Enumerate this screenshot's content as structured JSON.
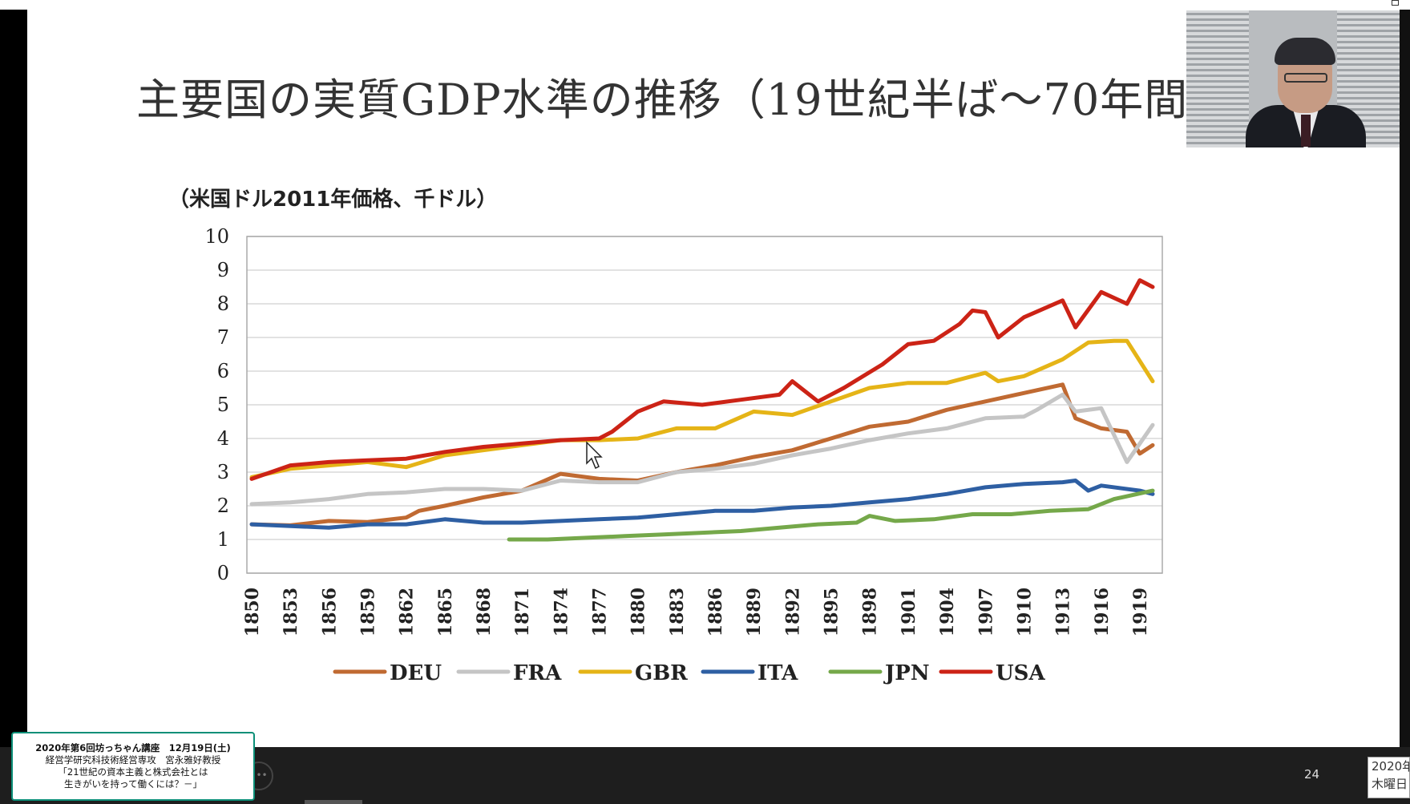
{
  "slide": {
    "title": "主要国の実質GDP水準の推移（19世紀半ば～70年間）",
    "unit_label": "（米国ドル2011年価格、千ドル）",
    "page_number": "24"
  },
  "caption": {
    "line1": "2020年第6回坊っちゃん講座　12月19日(土)",
    "line2": "経営学研究科技術経営専攻　宮永雅好教授",
    "line3": "「21世紀の資本主義と株式会社とは",
    "line4": "生きがいを持って働くには？－」"
  },
  "datebox": {
    "line1": "2020年",
    "line2": "木曜日"
  },
  "colors": {
    "DEU": "#c06a32",
    "FRA": "#c5c5c5",
    "GBR": "#e5b417",
    "ITA": "#2e5fa3",
    "JPN": "#75a84a",
    "USA": "#cc2316",
    "caption_border": "#0c8f78"
  },
  "icons": {
    "cursor": "mouse-pointer-icon",
    "control": "more-options-icon"
  },
  "chart_data": {
    "type": "line",
    "title": "主要国の実質GDP水準の推移（19世紀半ば～70年間）",
    "ylabel": "（米国ドル2011年価格、千ドル）",
    "xlabel": "",
    "ylim": [
      0,
      10
    ],
    "xlim": [
      1850,
      1920
    ],
    "yticks": [
      "0",
      "1",
      "2",
      "3",
      "4",
      "5",
      "6",
      "7",
      "8",
      "9",
      "10"
    ],
    "xticks": [
      "1850",
      "1853",
      "1856",
      "1859",
      "1862",
      "1865",
      "1868",
      "1871",
      "1874",
      "1877",
      "1880",
      "1883",
      "1886",
      "1889",
      "1892",
      "1895",
      "1898",
      "1901",
      "1904",
      "1907",
      "1910",
      "1913",
      "1916",
      "1919"
    ],
    "grid": true,
    "legend_position": "bottom",
    "series": [
      {
        "name": "DEU",
        "x": [
          1850,
          1853,
          1856,
          1859,
          1862,
          1863,
          1865,
          1868,
          1871,
          1874,
          1877,
          1880,
          1883,
          1886,
          1889,
          1892,
          1895,
          1898,
          1901,
          1904,
          1907,
          1910,
          1913,
          1914,
          1916,
          1918,
          1919,
          1920
        ],
        "y": [
          1.45,
          1.42,
          1.55,
          1.52,
          1.65,
          1.85,
          2.0,
          2.25,
          2.45,
          2.95,
          2.8,
          2.75,
          3.0,
          3.2,
          3.45,
          3.65,
          4.0,
          4.35,
          4.5,
          4.85,
          5.1,
          5.35,
          5.6,
          4.6,
          4.3,
          4.2,
          3.55,
          3.8
        ]
      },
      {
        "name": "FRA",
        "x": [
          1850,
          1853,
          1856,
          1859,
          1862,
          1865,
          1868,
          1871,
          1874,
          1877,
          1880,
          1883,
          1886,
          1889,
          1892,
          1895,
          1898,
          1901,
          1904,
          1907,
          1910,
          1911,
          1913,
          1914,
          1916,
          1918,
          1920
        ],
        "y": [
          2.05,
          2.1,
          2.2,
          2.35,
          2.4,
          2.5,
          2.5,
          2.45,
          2.75,
          2.7,
          2.7,
          3.0,
          3.1,
          3.25,
          3.5,
          3.7,
          3.95,
          4.15,
          4.3,
          4.6,
          4.65,
          4.85,
          5.3,
          4.8,
          4.9,
          3.3,
          4.4
        ]
      },
      {
        "name": "GBR",
        "x": [
          1850,
          1853,
          1856,
          1859,
          1862,
          1865,
          1868,
          1871,
          1874,
          1877,
          1880,
          1883,
          1886,
          1889,
          1892,
          1895,
          1898,
          1901,
          1904,
          1907,
          1908,
          1910,
          1913,
          1915,
          1917,
          1918,
          1920
        ],
        "y": [
          2.85,
          3.1,
          3.2,
          3.3,
          3.15,
          3.5,
          3.65,
          3.8,
          3.95,
          3.95,
          4.0,
          4.3,
          4.3,
          4.8,
          4.7,
          5.1,
          5.5,
          5.65,
          5.65,
          5.95,
          5.7,
          5.85,
          6.35,
          6.85,
          6.9,
          6.9,
          5.7
        ]
      },
      {
        "name": "ITA",
        "x": [
          1850,
          1853,
          1856,
          1859,
          1862,
          1865,
          1868,
          1871,
          1874,
          1877,
          1880,
          1883,
          1886,
          1889,
          1892,
          1895,
          1898,
          1901,
          1904,
          1907,
          1910,
          1913,
          1914,
          1915,
          1916,
          1919,
          1920
        ],
        "y": [
          1.45,
          1.4,
          1.35,
          1.45,
          1.45,
          1.6,
          1.5,
          1.5,
          1.55,
          1.6,
          1.65,
          1.75,
          1.85,
          1.85,
          1.95,
          2.0,
          2.1,
          2.2,
          2.35,
          2.55,
          2.65,
          2.7,
          2.75,
          2.45,
          2.6,
          2.45,
          2.35
        ]
      },
      {
        "name": "JPN",
        "x": [
          1870,
          1873,
          1876,
          1879,
          1882,
          1885,
          1888,
          1891,
          1894,
          1897,
          1898,
          1900,
          1903,
          1906,
          1909,
          1912,
          1915,
          1917,
          1920
        ],
        "y": [
          1.0,
          1.0,
          1.05,
          1.1,
          1.15,
          1.2,
          1.25,
          1.35,
          1.45,
          1.5,
          1.7,
          1.55,
          1.6,
          1.75,
          1.75,
          1.85,
          1.9,
          2.2,
          2.45
        ]
      },
      {
        "name": "USA",
        "x": [
          1850,
          1853,
          1856,
          1859,
          1862,
          1865,
          1868,
          1871,
          1874,
          1877,
          1878,
          1880,
          1882,
          1885,
          1888,
          1891,
          1892,
          1894,
          1896,
          1899,
          1901,
          1903,
          1905,
          1906,
          1907,
          1908,
          1910,
          1913,
          1914,
          1916,
          1918,
          1919,
          1920
        ],
        "y": [
          2.8,
          3.2,
          3.3,
          3.35,
          3.4,
          3.6,
          3.75,
          3.85,
          3.95,
          4.0,
          4.2,
          4.8,
          5.1,
          5.0,
          5.15,
          5.3,
          5.7,
          5.1,
          5.5,
          6.2,
          6.8,
          6.9,
          7.4,
          7.8,
          7.75,
          7.0,
          7.6,
          8.1,
          7.3,
          8.35,
          8.0,
          8.7,
          8.5
        ]
      }
    ]
  }
}
